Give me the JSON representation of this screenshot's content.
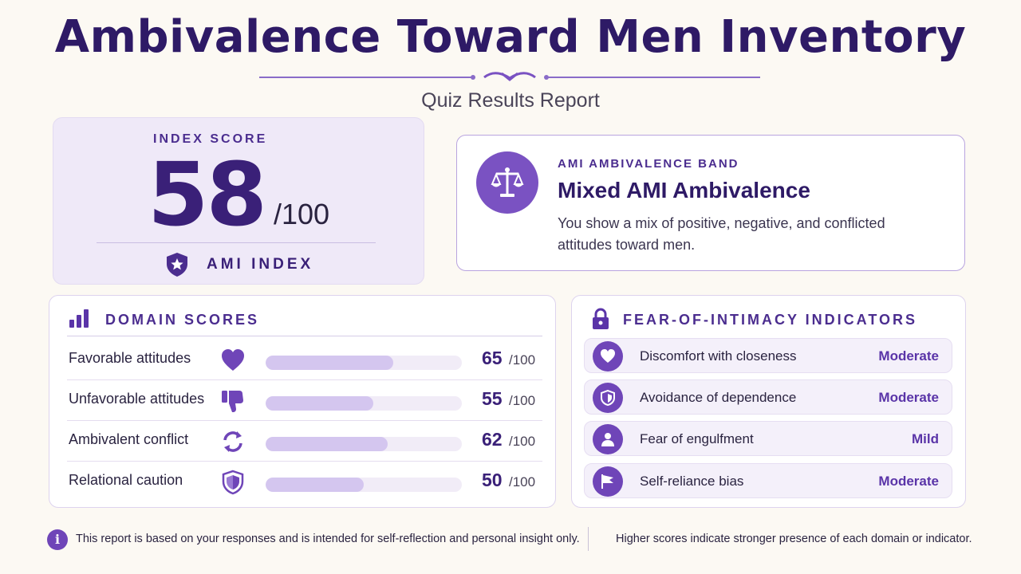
{
  "header": {
    "title": "Ambivalence Toward Men Inventory",
    "subtitle": "Quiz Results Report"
  },
  "score_card": {
    "label": "INDEX SCORE",
    "score": "58",
    "out_of": "/100",
    "index_label": "AMI INDEX",
    "icon": "star-shield-icon"
  },
  "band_card": {
    "icon": "balance-scale-icon",
    "label": "AMI AMBIVALENCE BAND",
    "title": "Mixed AMI Ambivalence",
    "description": "You show a mix of positive, negative, and conflicted attitudes toward men."
  },
  "domain_panel": {
    "heading": "DOMAIN SCORES",
    "icon": "bar-chart-icon",
    "rows": [
      {
        "name": "Favorable attitudes",
        "icon": "heart-icon",
        "value": 65,
        "value_text": "65",
        "max_text": "/100"
      },
      {
        "name": "Unfavorable attitudes",
        "icon": "thumbs-down-icon",
        "value": 55,
        "value_text": "55",
        "max_text": "/100"
      },
      {
        "name": "Ambivalent conflict",
        "icon": "refresh-icon",
        "value": 62,
        "value_text": "62",
        "max_text": "/100"
      },
      {
        "name": "Relational caution",
        "icon": "shield-icon",
        "value": 50,
        "value_text": "50",
        "max_text": "/100"
      }
    ]
  },
  "fear_panel": {
    "heading": "FEAR-OF-INTIMACY INDICATORS",
    "icon": "lock-icon",
    "rows": [
      {
        "name": "Discomfort with closeness",
        "icon": "heart-icon",
        "level": "Moderate"
      },
      {
        "name": "Avoidance of dependence",
        "icon": "shield-icon",
        "level": "Moderate"
      },
      {
        "name": "Fear of engulfment",
        "icon": "person-icon",
        "level": "Mild"
      },
      {
        "name": "Self-reliance bias",
        "icon": "flag-icon",
        "level": "Moderate"
      }
    ]
  },
  "footer": {
    "info_icon": "info-icon",
    "info_glyph": "i",
    "note_left": "This report is based on your responses and is intended for self-reflection and personal insight only.",
    "note_right": "Higher scores indicate stronger presence of each domain or indicator."
  },
  "colors": {
    "primary": "#3a2078",
    "accent": "#7a52c2",
    "bar_fill": "#d4c6ef",
    "bar_track": "#f1ecf7",
    "background": "#fcf9f3"
  }
}
